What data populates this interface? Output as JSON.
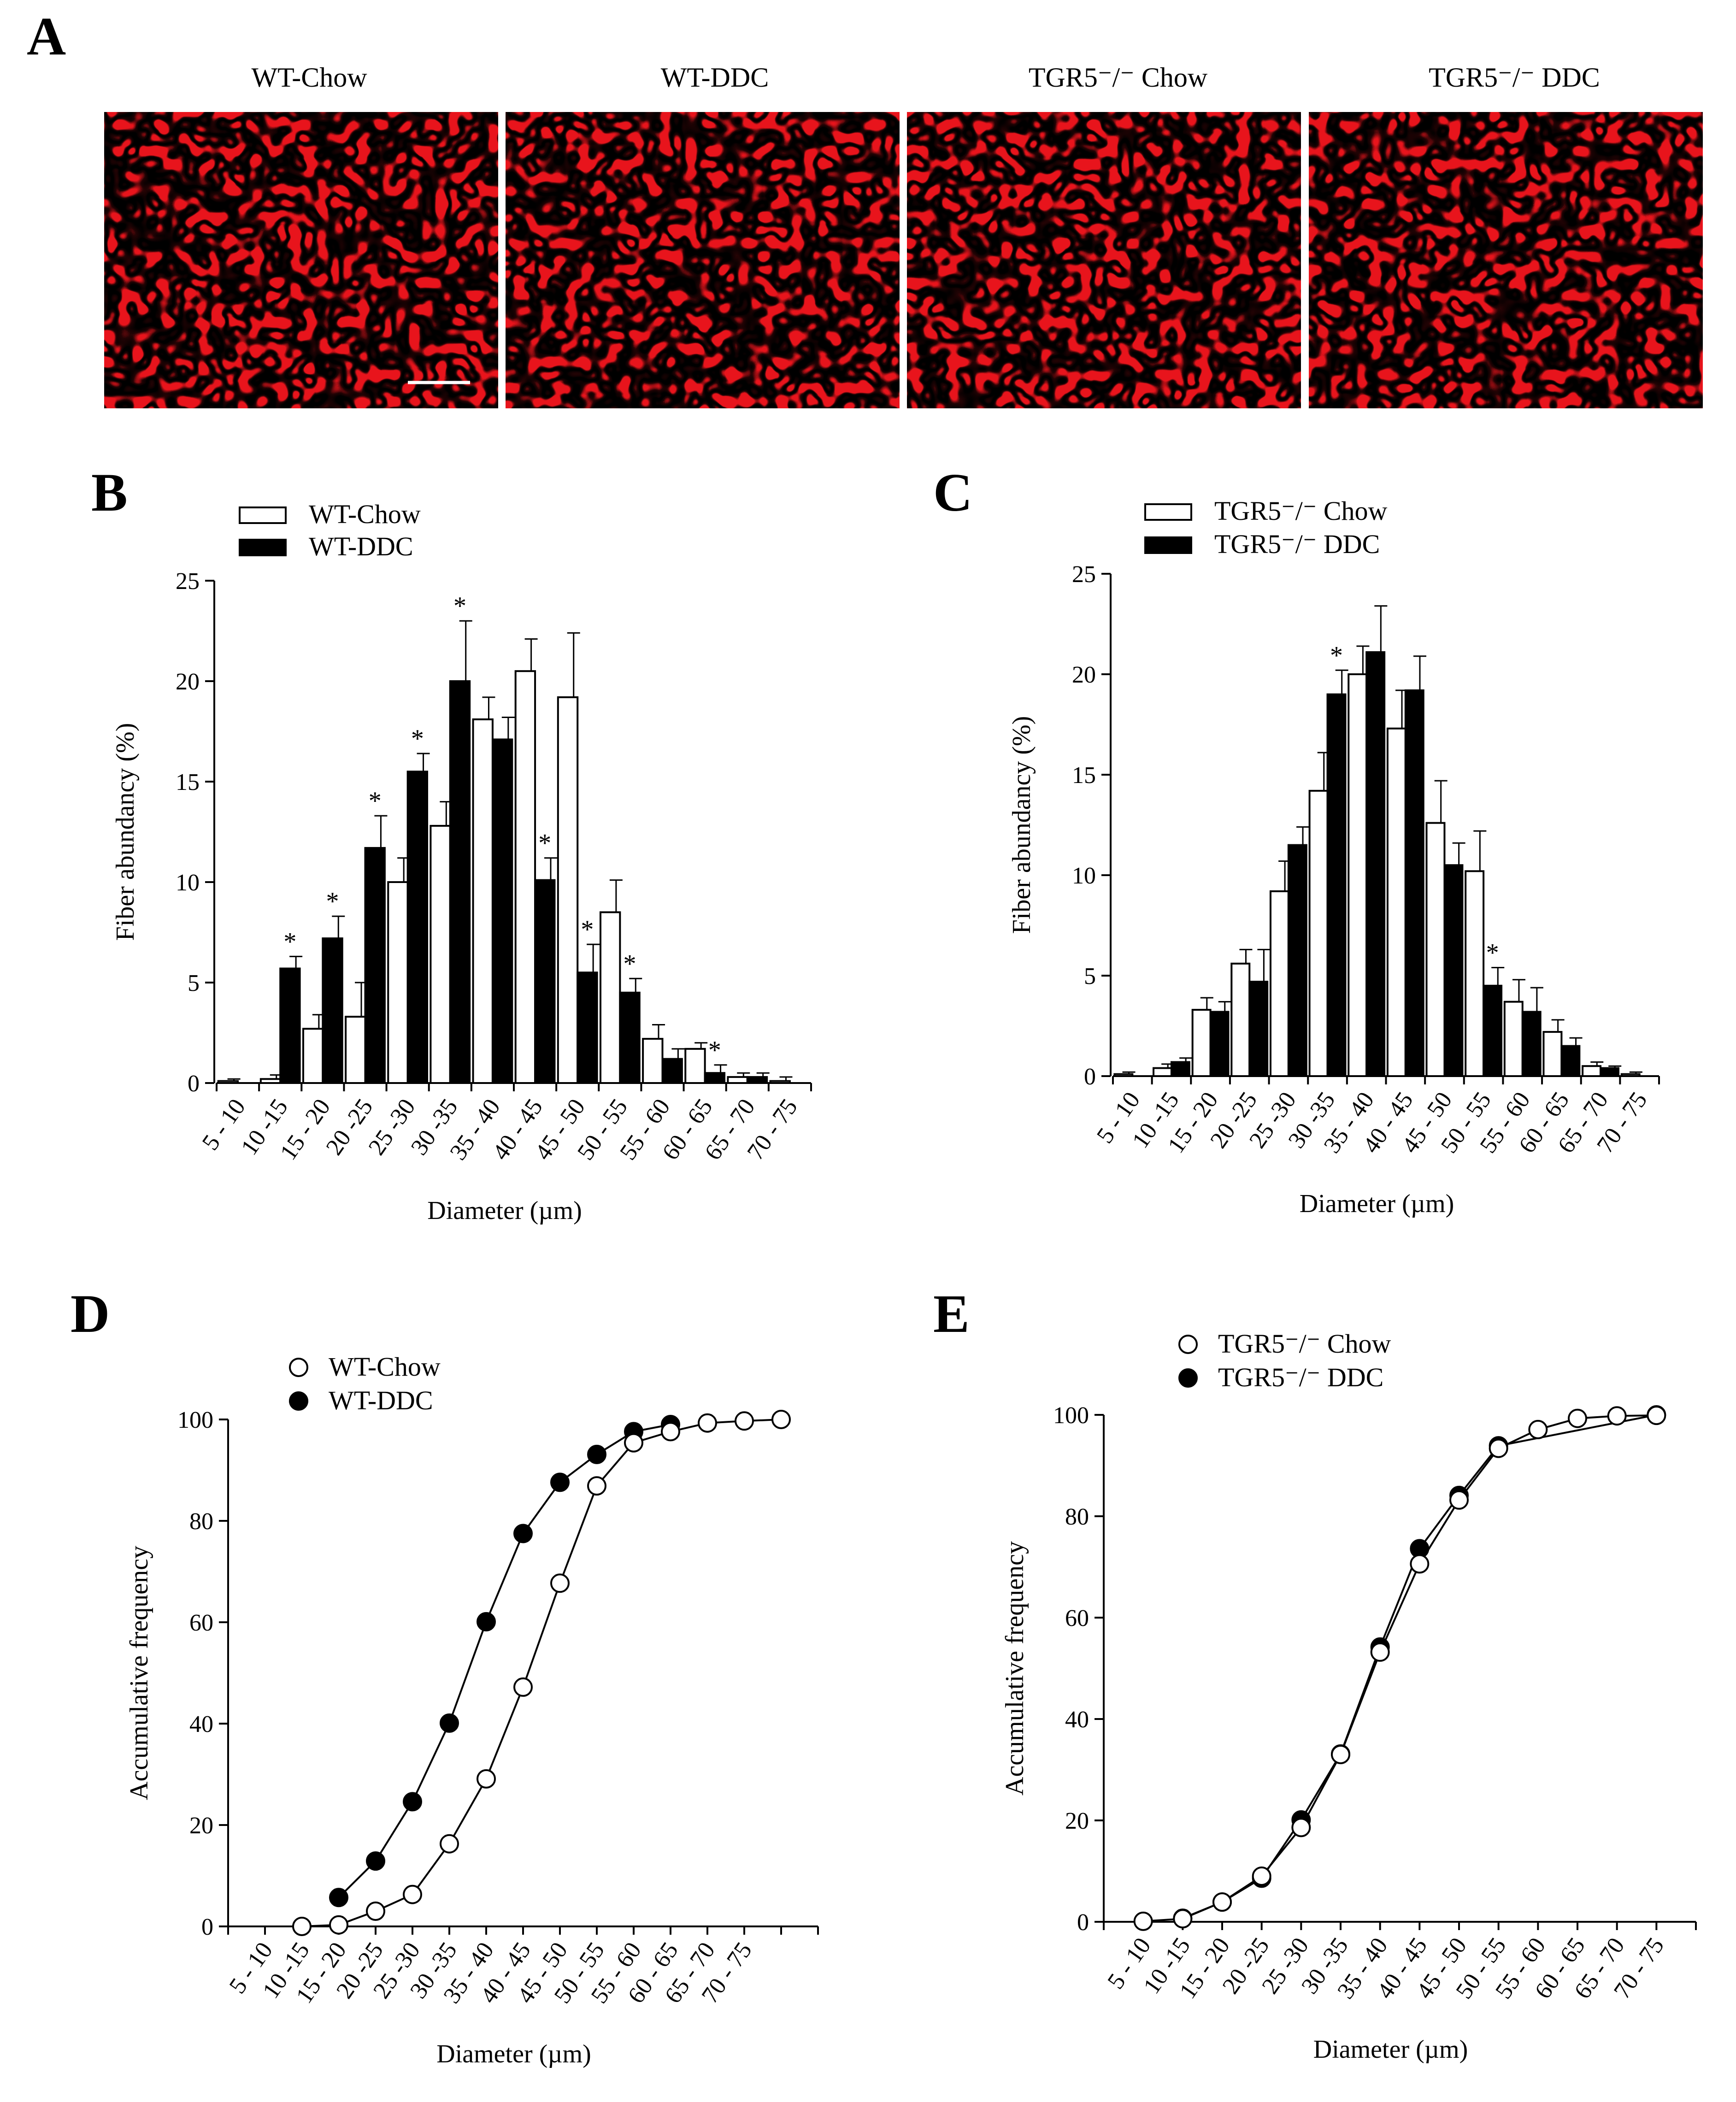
{
  "figure": {
    "panel_labels": [
      "A",
      "B",
      "C",
      "D",
      "E"
    ],
    "micrograph_titles": [
      "WT-Chow",
      "WT-DDC",
      "TGR5⁻/⁻ Chow",
      "TGR5⁻/⁻ DDC"
    ],
    "colors": {
      "stain_red": "#e8141c",
      "background_black": "#000000",
      "bar_filled": "#000000",
      "bar_open": "#ffffff"
    }
  },
  "chart_data": [
    {
      "panel": "B",
      "type": "bar",
      "title": "",
      "xlabel": "Diameter (µm)",
      "ylabel": "Fiber abundancy (%)",
      "ylim": [
        0,
        25
      ],
      "yticks": [
        0,
        5,
        10,
        15,
        20,
        25
      ],
      "categories": [
        "5 - 10",
        "10 -15",
        "15 - 20",
        "20 -25",
        "25 -30",
        "30 -35",
        "35 - 40",
        "40 - 45",
        "45 - 50",
        "50 - 55",
        "55 - 60",
        "60 - 65",
        "65 - 70",
        "70 - 75"
      ],
      "legend_position": "top-left",
      "series": [
        {
          "name": "WT-Chow",
          "fill": "open",
          "values": [
            0.1,
            0.2,
            2.7,
            3.3,
            10.0,
            12.8,
            18.1,
            20.5,
            19.2,
            8.5,
            2.2,
            1.7,
            0.3,
            0.1
          ],
          "errors": [
            0.1,
            0.2,
            0.7,
            1.7,
            1.2,
            1.2,
            1.1,
            1.6,
            3.2,
            1.6,
            0.7,
            0.3,
            0.2,
            0.2
          ]
        },
        {
          "name": "WT-DDC",
          "fill": "filled",
          "values": [
            0.0,
            5.7,
            7.2,
            11.7,
            15.5,
            20.0,
            17.1,
            10.1,
            5.5,
            4.5,
            1.2,
            0.5,
            0.3,
            0.0
          ],
          "errors": [
            0.0,
            0.6,
            1.1,
            1.6,
            0.9,
            3.0,
            1.1,
            1.1,
            1.4,
            0.7,
            0.5,
            0.4,
            0.2,
            0.0
          ]
        }
      ],
      "significant_categories": [
        "10 -15",
        "15 - 20",
        "20 -25",
        "25 -30",
        "30 -35",
        "40 - 45",
        "45 - 50",
        "50 - 55",
        "60 - 65"
      ],
      "significance_marker": "*"
    },
    {
      "panel": "C",
      "type": "bar",
      "title": "",
      "xlabel": "Diameter (µm)",
      "ylabel": "Fiber abundancy (%)",
      "ylim": [
        0,
        25
      ],
      "yticks": [
        0,
        5,
        10,
        15,
        20,
        25
      ],
      "categories": [
        "5 - 10",
        "10 -15",
        "15 - 20",
        "20 -25",
        "25 -30",
        "30 -35",
        "35 - 40",
        "40 - 45",
        "45 - 50",
        "50 - 55",
        "55 - 60",
        "60 - 65",
        "65 - 70",
        "70 - 75"
      ],
      "legend_position": "top-left",
      "series": [
        {
          "name": "TGR5⁻/⁻ Chow",
          "fill": "open",
          "values": [
            0.1,
            0.4,
            3.3,
            5.6,
            9.2,
            14.2,
            20.0,
            17.3,
            12.6,
            10.2,
            3.7,
            2.2,
            0.5,
            0.1
          ],
          "errors": [
            0.1,
            0.2,
            0.6,
            0.7,
            1.5,
            1.9,
            1.4,
            1.9,
            2.1,
            2.0,
            1.1,
            0.6,
            0.2,
            0.1
          ]
        },
        {
          "name": "TGR5⁻/⁻ DDC",
          "fill": "filled",
          "values": [
            0.0,
            0.7,
            3.2,
            4.7,
            11.5,
            19.0,
            21.1,
            19.2,
            10.5,
            4.5,
            3.2,
            1.5,
            0.4,
            0.0
          ],
          "errors": [
            0.0,
            0.2,
            0.5,
            1.6,
            0.9,
            1.2,
            2.3,
            1.7,
            1.1,
            0.9,
            1.2,
            0.4,
            0.1,
            0.0
          ]
        }
      ],
      "significant_categories": [
        "30 -35",
        "50 - 55"
      ],
      "significance_marker": "*"
    },
    {
      "panel": "D",
      "type": "line",
      "title": "",
      "xlabel": "Diameter (µm)",
      "ylabel": "Accumulative frequency",
      "ylim": [
        0,
        100
      ],
      "yticks": [
        0,
        20,
        40,
        60,
        80,
        100
      ],
      "categories": [
        "5 - 10",
        "10 -15",
        "15 - 20",
        "20 -25",
        "25 -30",
        "30 -35",
        "35 - 40",
        "40 - 45",
        "45 - 50",
        "50 - 55",
        "55 - 60",
        "60 - 65",
        "65 - 70",
        "70 - 75"
      ],
      "legend_position": "top-left",
      "series": [
        {
          "name": "WT-Chow",
          "marker": "open-circle",
          "x": [
            2,
            3,
            4,
            5,
            6,
            7,
            8,
            9,
            10,
            11,
            12,
            13,
            14,
            15
          ],
          "values": [
            0,
            0.3,
            3.0,
            6.3,
            16.3,
            29.1,
            47.2,
            67.7,
            86.9,
            95.4,
            97.6,
            99.3,
            99.7,
            100
          ]
        },
        {
          "name": "WT-DDC",
          "marker": "filled-circle",
          "x": [
            3,
            4,
            5,
            6,
            7,
            8,
            9,
            10,
            11,
            12
          ],
          "values": [
            5.7,
            12.9,
            24.6,
            40.1,
            60.1,
            77.5,
            87.6,
            93.1,
            97.6,
            99.0
          ]
        }
      ]
    },
    {
      "panel": "E",
      "type": "line",
      "title": "",
      "xlabel": "Diameter (µm)",
      "ylabel": "Accumulative frequency",
      "ylim": [
        0,
        100
      ],
      "yticks": [
        0,
        20,
        40,
        60,
        80,
        100
      ],
      "categories": [
        "5 - 10",
        "10 -15",
        "15 - 20",
        "20 -25",
        "25 -30",
        "30 -35",
        "35 - 40",
        "40 - 45",
        "45 - 50",
        "50 - 55",
        "55 - 60",
        "60 - 65",
        "65 - 70",
        "70 - 75"
      ],
      "legend_position": "top-left",
      "series": [
        {
          "name": "TGR5⁻/⁻ Chow",
          "marker": "open-circle",
          "x": [
            1,
            2,
            3,
            4,
            5,
            6,
            7,
            8,
            9,
            10,
            11,
            12,
            13,
            14
          ],
          "values": [
            0.1,
            0.6,
            3.9,
            9.0,
            18.6,
            33.0,
            53.2,
            70.6,
            83.2,
            93.4,
            97.1,
            99.3,
            99.8,
            99.9
          ]
        },
        {
          "name": "TGR5⁻/⁻ DDC",
          "marker": "filled-circle",
          "x": [
            2,
            3,
            4,
            5,
            6,
            7,
            8,
            9,
            10,
            14
          ],
          "values": [
            0.7,
            3.9,
            8.6,
            20.1,
            33.1,
            54.2,
            73.6,
            84.1,
            93.9,
            100
          ]
        }
      ]
    }
  ]
}
